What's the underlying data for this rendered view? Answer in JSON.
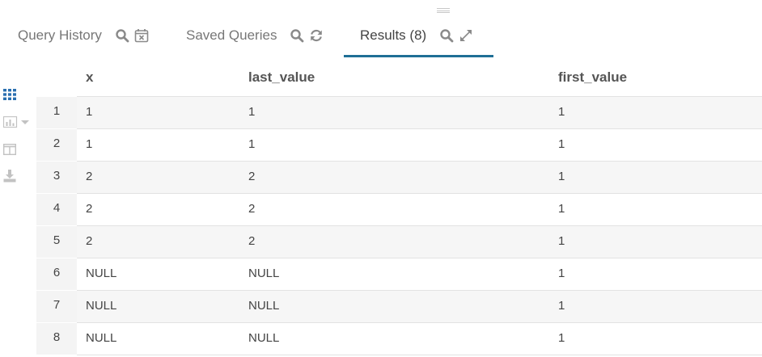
{
  "tabs": [
    {
      "label": "Query History",
      "icons": [
        "search-icon",
        "calendar-clear-icon"
      ],
      "active": false
    },
    {
      "label": "Saved Queries",
      "icons": [
        "search-icon",
        "refresh-icon"
      ],
      "active": false
    },
    {
      "label": "Results (8)",
      "icons": [
        "search-icon",
        "expand-icon"
      ],
      "active": true
    }
  ],
  "toolbar": [
    "grid-icon",
    "chart-icon",
    "columns-icon",
    "download-icon"
  ],
  "colors": {
    "accent": "#1f6f96",
    "icon_gray": "#8a8a8a",
    "grid_icon": "#2a6fb0"
  },
  "table": {
    "columns": [
      "x",
      "last_value",
      "first_value"
    ],
    "rows": [
      {
        "num": "1",
        "cells": [
          "1",
          "1",
          "1"
        ]
      },
      {
        "num": "2",
        "cells": [
          "1",
          "1",
          "1"
        ]
      },
      {
        "num": "3",
        "cells": [
          "2",
          "2",
          "1"
        ]
      },
      {
        "num": "4",
        "cells": [
          "2",
          "2",
          "1"
        ]
      },
      {
        "num": "5",
        "cells": [
          "2",
          "2",
          "1"
        ]
      },
      {
        "num": "6",
        "cells": [
          "NULL",
          "NULL",
          "1"
        ]
      },
      {
        "num": "7",
        "cells": [
          "NULL",
          "NULL",
          "1"
        ]
      },
      {
        "num": "8",
        "cells": [
          "NULL",
          "NULL",
          "1"
        ]
      }
    ]
  }
}
